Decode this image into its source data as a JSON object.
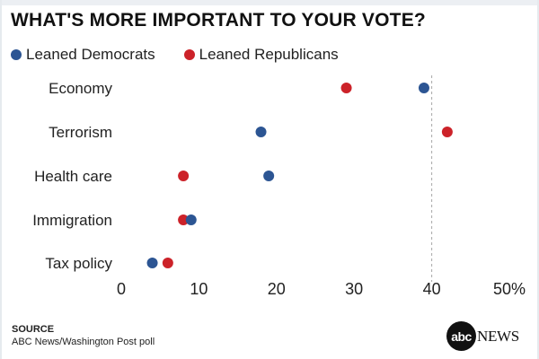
{
  "chart_data": {
    "type": "scatter",
    "title": "WHAT'S MORE IMPORTANT TO YOUR VOTE?",
    "categories": [
      "Economy",
      "Terrorism",
      "Health care",
      "Immigration",
      "Tax policy"
    ],
    "series": [
      {
        "name": "Leaned Democrats",
        "color": "#2c5593",
        "values": [
          39,
          18,
          19,
          9,
          4
        ]
      },
      {
        "name": "Leaned Republicans",
        "color": "#cc2229",
        "values": [
          29,
          42,
          8,
          8,
          6
        ]
      }
    ],
    "xlim": [
      0,
      50
    ],
    "x_ticks": [
      "0",
      "10",
      "20",
      "30",
      "40",
      "50%"
    ],
    "reference_line": {
      "x": 40,
      "style": "dashed"
    },
    "legend_position": "top-left",
    "grid": false
  },
  "footer": {
    "source_label": "SOURCE",
    "source_text": "ABC News/Washington Post poll",
    "logo_mark": "abc",
    "logo_word": "NEWS"
  }
}
